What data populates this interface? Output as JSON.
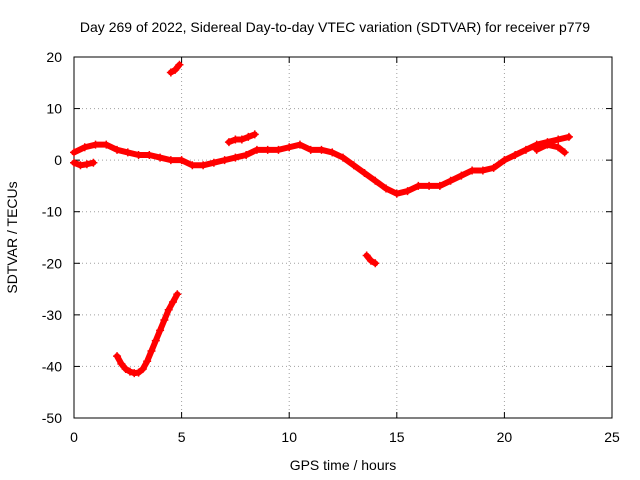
{
  "chart_data": {
    "type": "scatter",
    "title": "Day 269 of 2022, Sidereal Day-to-day VTEC variation (SDTVAR) for receiver p779",
    "xlabel": "GPS time / hours",
    "ylabel": "SDTVAR / TECUs",
    "xlim": [
      0,
      25
    ],
    "ylim": [
      -50,
      20
    ],
    "xticks": [
      0,
      5,
      10,
      15,
      20,
      25
    ],
    "yticks": [
      -50,
      -40,
      -30,
      -20,
      -10,
      0,
      10,
      20
    ],
    "grid": true,
    "marker": "plus",
    "color": "#ff0000",
    "series": [
      {
        "name": "main-track",
        "x": [
          0.0,
          0.5,
          1.0,
          1.5,
          2.0,
          2.5,
          3.0,
          3.5,
          4.0,
          4.5,
          5.0,
          5.5,
          6.0,
          6.5,
          7.0,
          7.5,
          8.0,
          8.5,
          9.0,
          9.5,
          10.0,
          10.5,
          11.0,
          11.5,
          12.0,
          12.5,
          13.0,
          13.5,
          14.0,
          14.5,
          15.0,
          15.5,
          16.0,
          16.5,
          17.0,
          17.5,
          18.0,
          18.5,
          19.0,
          19.5,
          20.0,
          20.5,
          21.0,
          21.5,
          22.0,
          22.5,
          23.0
        ],
        "y": [
          1.5,
          2.5,
          3.0,
          3.0,
          2.0,
          1.5,
          1.0,
          1.0,
          0.5,
          0.0,
          0.0,
          -1.0,
          -1.0,
          -0.5,
          0.0,
          0.5,
          1.0,
          2.0,
          2.0,
          2.0,
          2.5,
          3.0,
          2.0,
          2.0,
          1.5,
          0.5,
          -1.0,
          -2.5,
          -4.0,
          -5.5,
          -6.5,
          -6.0,
          -5.0,
          -5.0,
          -5.0,
          -4.0,
          -3.0,
          -2.0,
          -2.0,
          -1.5,
          0.0,
          1.0,
          2.0,
          3.0,
          3.5,
          4.0,
          4.5
        ]
      },
      {
        "name": "early-negative",
        "x": [
          0.0,
          0.3,
          0.6,
          0.9
        ],
        "y": [
          -0.5,
          -1.0,
          -0.8,
          -0.5
        ]
      },
      {
        "name": "night-arc",
        "x": [
          2.0,
          2.2,
          2.4,
          2.6,
          2.8,
          3.0,
          3.2,
          3.4,
          3.6,
          3.8,
          4.0,
          4.2,
          4.4,
          4.6,
          4.8
        ],
        "y": [
          -38.0,
          -39.5,
          -40.5,
          -41.0,
          -41.3,
          -41.2,
          -40.5,
          -39.0,
          -37.0,
          -35.0,
          -33.0,
          -31.0,
          -29.0,
          -27.5,
          -26.0
        ]
      },
      {
        "name": "high-fragment",
        "x": [
          4.5,
          4.7,
          4.9
        ],
        "y": [
          17.0,
          17.5,
          18.5
        ]
      },
      {
        "name": "small-segment-7-8",
        "x": [
          7.2,
          7.5,
          7.8,
          8.1,
          8.4
        ],
        "y": [
          3.5,
          4.0,
          4.0,
          4.5,
          5.0
        ]
      },
      {
        "name": "dip-14",
        "x": [
          13.6,
          13.8,
          14.0
        ],
        "y": [
          -18.5,
          -19.5,
          -20.0
        ]
      },
      {
        "name": "late-branch",
        "x": [
          21.5,
          22.0,
          22.5,
          22.8
        ],
        "y": [
          2.0,
          3.0,
          2.5,
          1.5
        ]
      }
    ]
  }
}
